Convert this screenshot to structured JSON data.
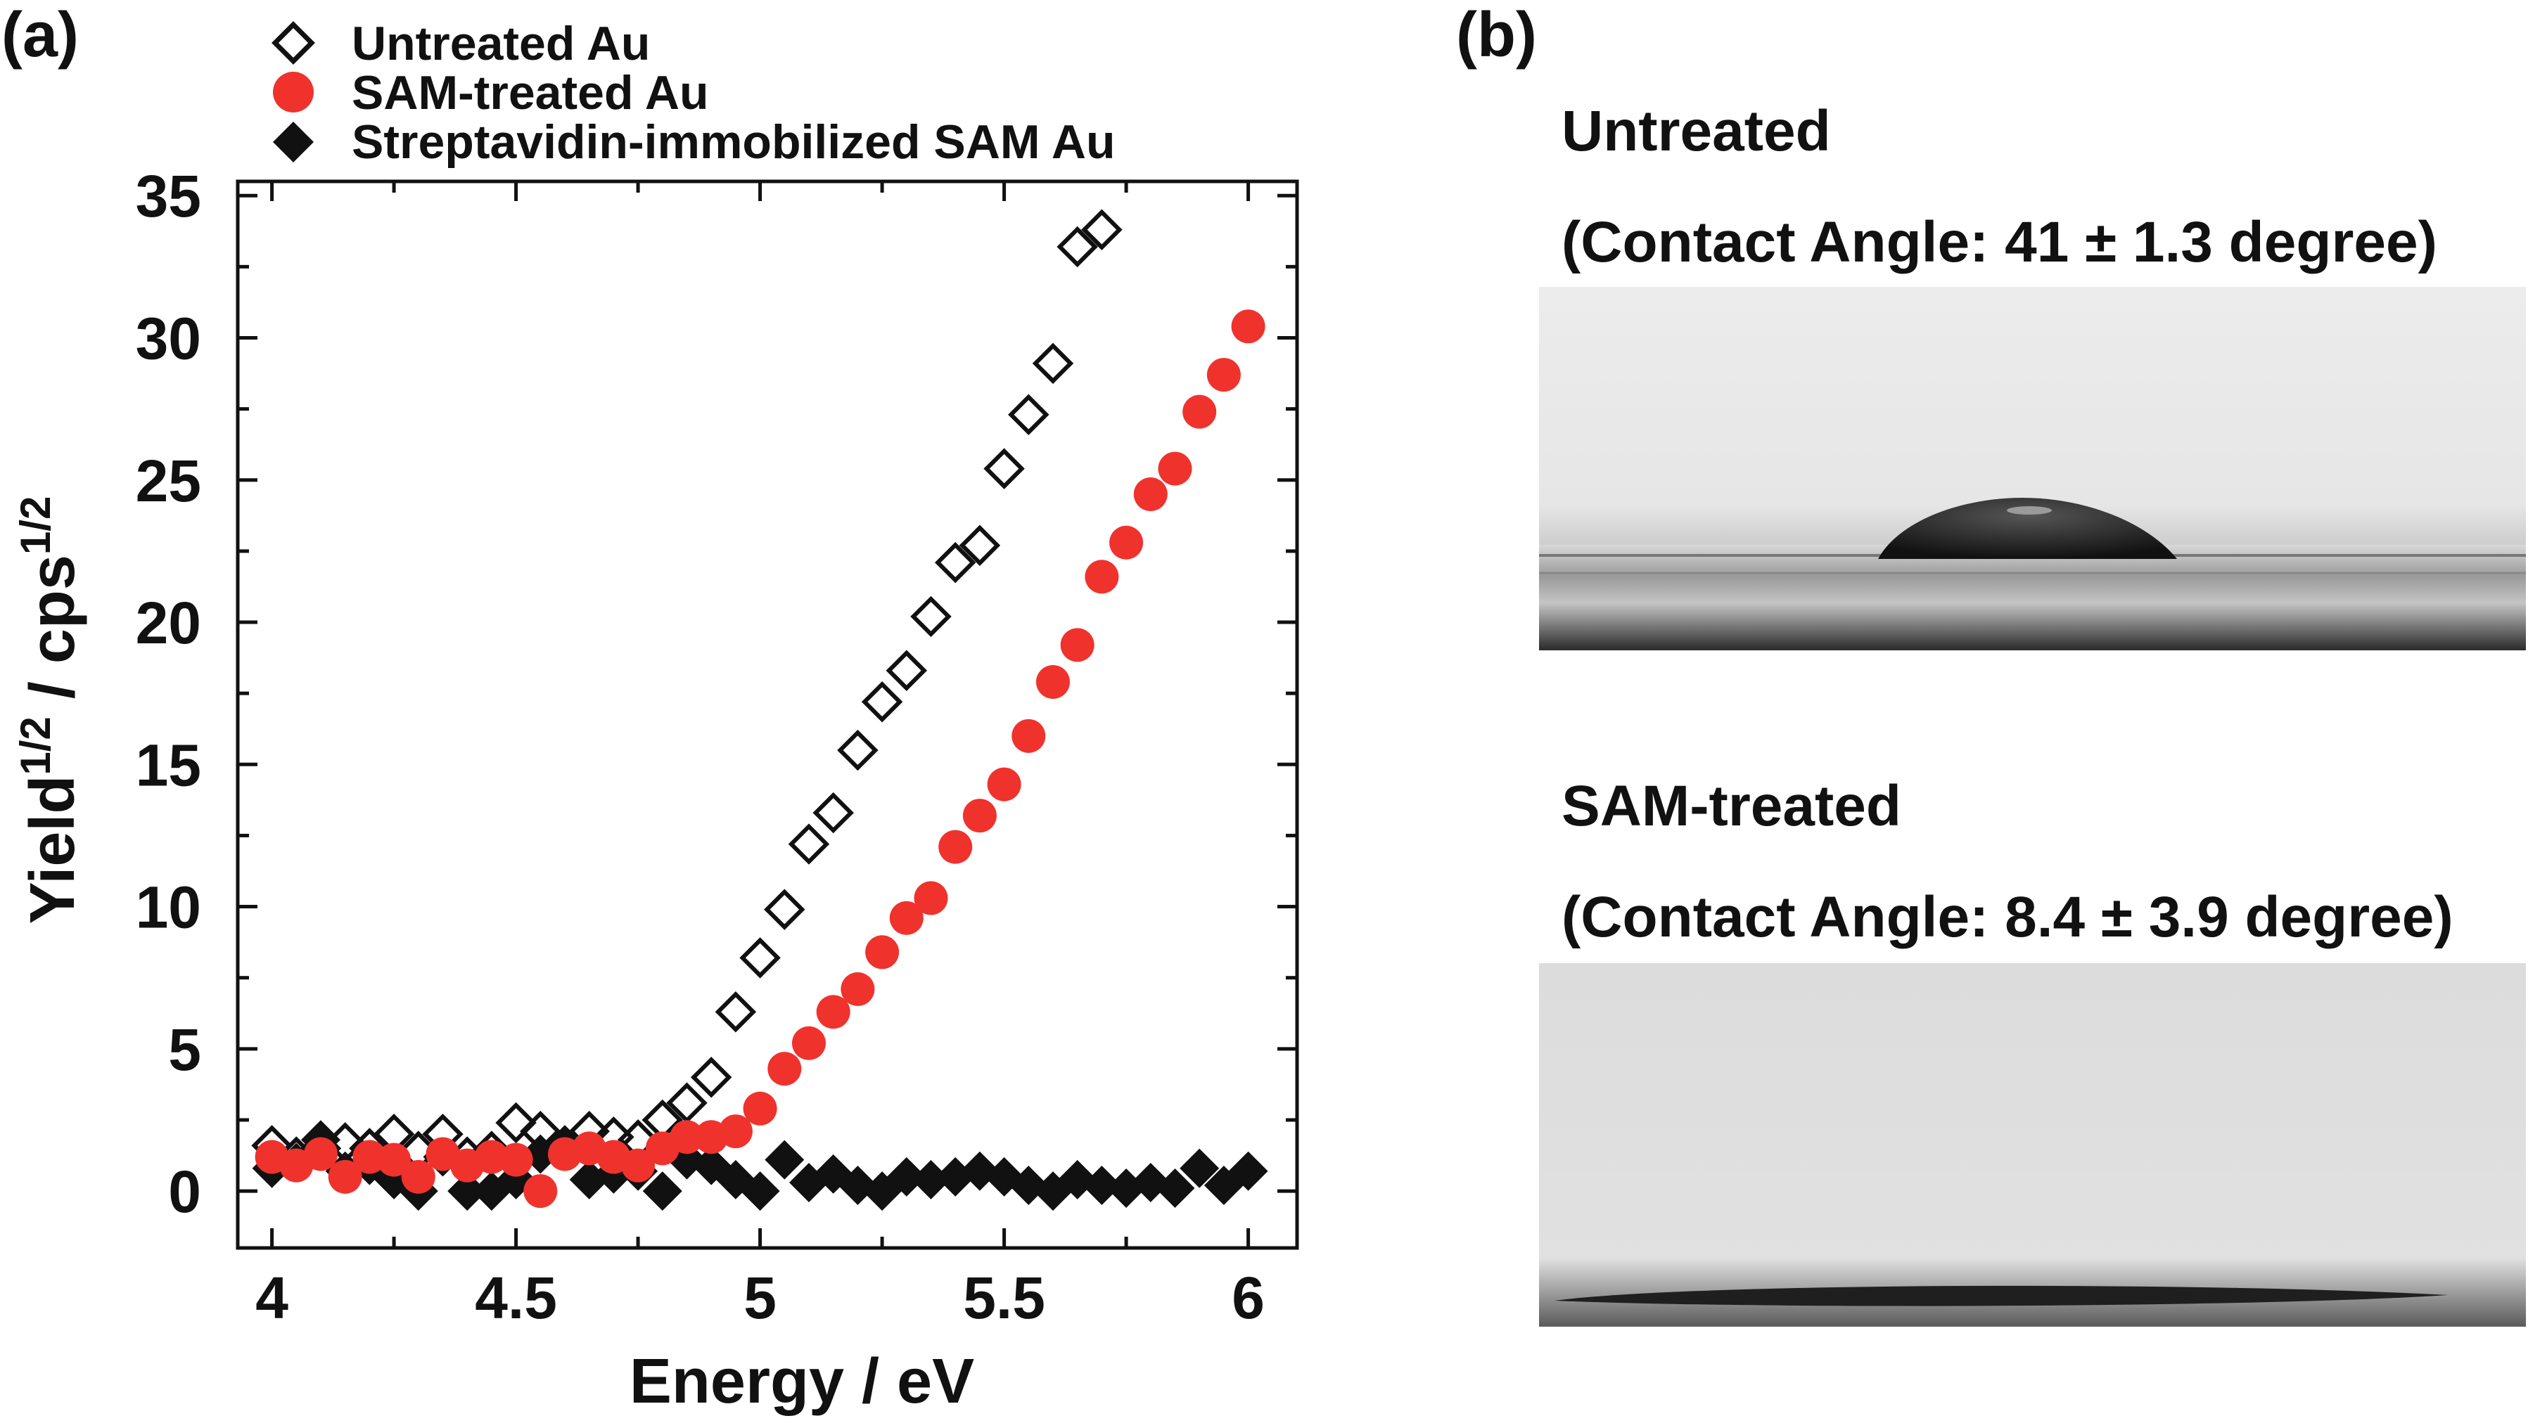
{
  "panel_a_label": "(a)",
  "panel_b_label": "(b)",
  "colors": {
    "untreated": "#111111",
    "sam": "#f0322d",
    "strept": "#111111"
  },
  "chart_data": {
    "type": "scatter",
    "xlabel": "Energy / eV",
    "ylabel_base": "Yield",
    "ylabel_mid": " / cps",
    "ylabel_sup": "1/2",
    "xlim": [
      3.93,
      6.1
    ],
    "ylim": [
      -2,
      35.5
    ],
    "xticks": [
      4,
      4.5,
      5,
      5.5,
      6
    ],
    "xtick_labels": [
      "4",
      "4.5",
      "5",
      "5.5",
      "6"
    ],
    "yticks": [
      0,
      5,
      10,
      15,
      20,
      25,
      30,
      35
    ],
    "ytick_labels": [
      "0",
      "5",
      "10",
      "15",
      "20",
      "25",
      "30",
      "35"
    ],
    "series": [
      {
        "name": "Untreated Au",
        "marker": "open-diamond",
        "x": [
          4.0,
          4.05,
          4.1,
          4.15,
          4.2,
          4.25,
          4.3,
          4.35,
          4.4,
          4.45,
          4.5,
          4.55,
          4.6,
          4.65,
          4.7,
          4.75,
          4.8,
          4.85,
          4.9,
          4.95,
          5.0,
          5.05,
          5.1,
          5.15,
          5.2,
          5.25,
          5.3,
          5.35,
          5.4,
          5.45,
          5.5,
          5.55,
          5.6,
          5.65,
          5.7
        ],
        "y": [
          1.6,
          1.2,
          1.5,
          1.7,
          1.5,
          2.0,
          1.4,
          2.0,
          1.2,
          1.4,
          2.4,
          2.1,
          1.6,
          2.1,
          1.9,
          1.8,
          2.5,
          3.1,
          4.0,
          6.3,
          8.2,
          9.9,
          12.2,
          13.3,
          15.5,
          17.2,
          18.3,
          20.2,
          22.1,
          22.7,
          25.4,
          27.3,
          29.1,
          33.2,
          33.8
        ]
      },
      {
        "name": "SAM-treated Au",
        "marker": "filled-circle",
        "x": [
          4.0,
          4.05,
          4.1,
          4.15,
          4.2,
          4.25,
          4.3,
          4.35,
          4.4,
          4.45,
          4.5,
          4.55,
          4.6,
          4.65,
          4.7,
          4.75,
          4.8,
          4.85,
          4.9,
          4.95,
          5.0,
          5.05,
          5.1,
          5.15,
          5.2,
          5.25,
          5.3,
          5.35,
          5.4,
          5.45,
          5.5,
          5.55,
          5.6,
          5.65,
          5.7,
          5.75,
          5.8,
          5.85,
          5.9,
          5.95,
          6.0
        ],
        "y": [
          1.2,
          0.9,
          1.3,
          0.5,
          1.2,
          1.1,
          0.5,
          1.3,
          0.9,
          1.2,
          1.1,
          0.0,
          1.3,
          1.5,
          1.2,
          0.9,
          1.5,
          1.9,
          1.9,
          2.1,
          2.9,
          4.3,
          5.2,
          6.3,
          7.1,
          8.4,
          9.6,
          10.3,
          12.1,
          13.2,
          14.3,
          16.0,
          17.9,
          19.2,
          21.6,
          22.8,
          24.5,
          25.4,
          27.4,
          28.7,
          30.4
        ]
      },
      {
        "name": "Streptavidin-immobilized SAM Au",
        "marker": "filled-diamond",
        "x": [
          4.0,
          4.05,
          4.1,
          4.15,
          4.2,
          4.25,
          4.3,
          4.35,
          4.4,
          4.45,
          4.5,
          4.55,
          4.6,
          4.65,
          4.7,
          4.75,
          4.8,
          4.85,
          4.9,
          4.95,
          5.0,
          5.05,
          5.1,
          5.15,
          5.2,
          5.25,
          5.3,
          5.35,
          5.4,
          5.45,
          5.5,
          5.55,
          5.6,
          5.65,
          5.7,
          5.75,
          5.8,
          5.85,
          5.9,
          5.95,
          6.0
        ],
        "y": [
          0.8,
          1.0,
          1.8,
          0.7,
          0.9,
          0.4,
          0.0,
          1.2,
          0.0,
          0.0,
          0.4,
          1.3,
          1.5,
          0.4,
          0.6,
          0.7,
          0.0,
          1.1,
          0.9,
          0.4,
          0.0,
          1.1,
          0.3,
          0.6,
          0.2,
          0.0,
          0.5,
          0.4,
          0.5,
          0.7,
          0.5,
          0.2,
          0.0,
          0.4,
          0.2,
          0.1,
          0.3,
          0.1,
          0.8,
          0.2,
          0.7
        ]
      }
    ]
  },
  "photos": [
    {
      "title": "Untreated",
      "subtitle": "(Contact Angle: 41 ± 1.3 degree)"
    },
    {
      "title": "SAM-treated",
      "subtitle": "(Contact Angle: 8.4 ± 3.9 degree)"
    }
  ]
}
